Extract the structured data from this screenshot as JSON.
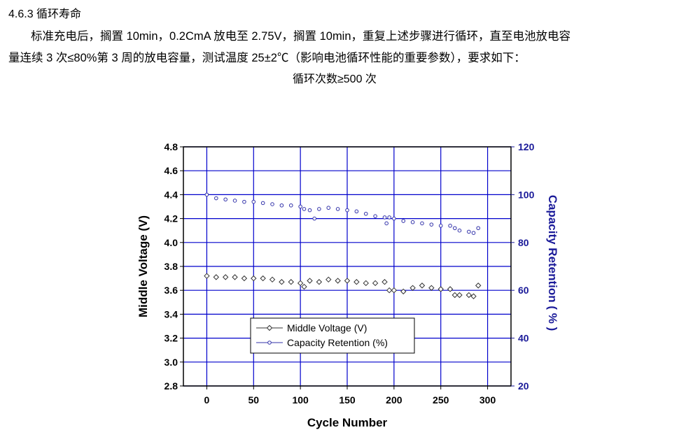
{
  "section": {
    "heading": "4.6.3 循环寿命",
    "para_line1": "标准充电后，搁置 10min，0.2CmA 放电至 2.75V，搁置 10min，重复上述步骤进行循环，直至电池放电容",
    "para_line2": "量连续 3 次≤80%第 3 周的放电容量，测试温度 25±2℃（影响电池循环性能的重要参数），要求如下：",
    "requirement": "循环次数≥500 次"
  },
  "colors": {
    "grid": "#0000cc",
    "right_axis": "#1a1a99",
    "capacity": "#3333aa",
    "voltage": "#333333"
  },
  "chart_data": {
    "type": "scatter",
    "xlabel": "Cycle Number",
    "ylabel": "Middle Voltage (V)",
    "y2label": "Capacity Retention ( % )",
    "xlim": [
      -25,
      325
    ],
    "ylim": [
      2.8,
      4.8
    ],
    "y2lim": [
      20,
      120
    ],
    "xticks": [
      0,
      50,
      100,
      150,
      200,
      250,
      300
    ],
    "yticks": [
      "2.8",
      "3.0",
      "3.2",
      "3.4",
      "3.6",
      "3.8",
      "4.0",
      "4.2",
      "4.4",
      "4.6",
      "4.8"
    ],
    "y2ticks": [
      20,
      40,
      60,
      80,
      100,
      120
    ],
    "grid": true,
    "legend": "center-bottom",
    "series": [
      {
        "name": "Middle Voltage (V)",
        "axis": "left",
        "marker": "diamond",
        "x": [
          0,
          10,
          20,
          30,
          40,
          50,
          60,
          70,
          80,
          90,
          100,
          104,
          110,
          120,
          130,
          140,
          150,
          160,
          170,
          180,
          190,
          195,
          200,
          210,
          220,
          230,
          240,
          250,
          260,
          265,
          270,
          280,
          285,
          290
        ],
        "y": [
          3.72,
          3.71,
          3.71,
          3.71,
          3.7,
          3.7,
          3.7,
          3.69,
          3.67,
          3.67,
          3.66,
          3.63,
          3.68,
          3.67,
          3.69,
          3.68,
          3.68,
          3.67,
          3.66,
          3.66,
          3.67,
          3.6,
          3.6,
          3.59,
          3.62,
          3.64,
          3.62,
          3.61,
          3.61,
          3.56,
          3.56,
          3.56,
          3.55,
          3.64
        ]
      },
      {
        "name": "Capacity Retention (%)",
        "axis": "right",
        "marker": "circle",
        "x": [
          0,
          10,
          20,
          30,
          40,
          50,
          60,
          70,
          80,
          90,
          100,
          104,
          110,
          115,
          120,
          130,
          140,
          150,
          160,
          170,
          180,
          190,
          192,
          195,
          200,
          210,
          220,
          230,
          240,
          250,
          260,
          265,
          270,
          280,
          285,
          290
        ],
        "y": [
          100,
          98.5,
          98,
          97.5,
          97,
          97,
          96.5,
          96,
          95.5,
          95.5,
          95,
          94,
          93.5,
          90,
          94,
          94.5,
          94,
          93.5,
          93,
          92,
          91,
          90.5,
          88,
          90.5,
          90,
          89,
          88.5,
          88,
          87.5,
          87,
          87,
          86,
          85,
          84.5,
          84,
          86
        ]
      }
    ]
  }
}
